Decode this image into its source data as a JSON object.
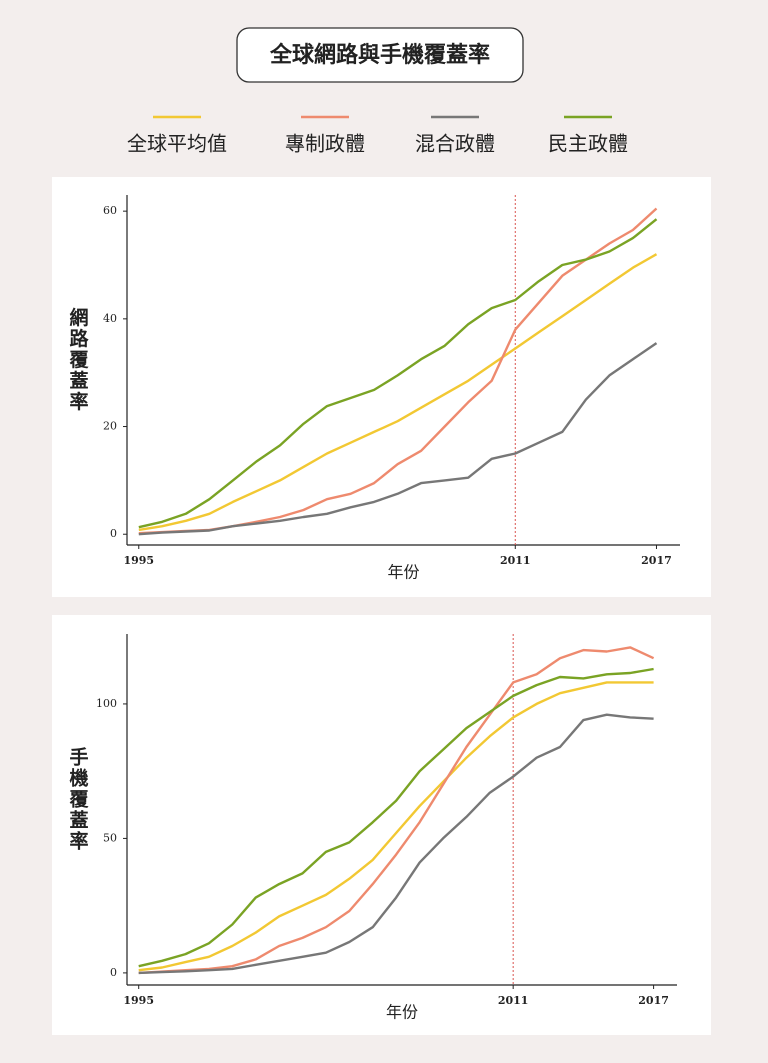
{
  "chart_data": [
    {
      "type": "line",
      "title": "全球網路與手機覆蓋率",
      "y_label": "網路覆蓋率",
      "x_label": "年份",
      "x": [
        1995,
        1996,
        1997,
        1998,
        1999,
        2000,
        2001,
        2002,
        2003,
        2004,
        2005,
        2006,
        2007,
        2008,
        2009,
        2010,
        2011,
        2012,
        2013,
        2014,
        2015,
        2016,
        2017
      ],
      "xlim": [
        1994.5,
        2018
      ],
      "xticks": [
        1995,
        2011,
        2017
      ],
      "vline": 2011,
      "ylim": [
        -2,
        63
      ],
      "yticks": [
        0,
        20,
        40,
        60
      ],
      "series": [
        {
          "name": "全球平均值",
          "color": "#f2c833",
          "values": [
            0.8,
            1.5,
            2.5,
            3.8,
            6,
            8,
            10,
            12.5,
            15,
            17,
            19,
            21,
            23.5,
            26,
            28.5,
            31.5,
            34.5,
            37.5,
            40.5,
            43.5,
            46.5,
            49.5,
            52
          ]
        },
        {
          "name": "專制政體",
          "color": "#ee8a6e",
          "values": [
            0.2,
            0.4,
            0.6,
            0.8,
            1.5,
            2.3,
            3.2,
            4.5,
            6.5,
            7.5,
            9.5,
            13,
            15.5,
            20,
            24.5,
            28.5,
            38,
            43,
            48,
            51,
            54,
            56.5,
            60.5
          ]
        },
        {
          "name": "混合政體",
          "color": "#777777",
          "values": [
            0,
            0.3,
            0.5,
            0.7,
            1.5,
            2,
            2.5,
            3.2,
            3.8,
            5,
            6,
            7.5,
            9.5,
            10,
            10.5,
            14,
            15,
            17,
            19,
            25,
            29.5,
            32.5,
            35.5
          ]
        },
        {
          "name": "民主政體",
          "color": "#7aa324",
          "values": [
            1.3,
            2.3,
            3.8,
            6.5,
            10,
            13.5,
            16.5,
            20.5,
            23.8,
            25.3,
            26.8,
            29.5,
            32.5,
            35,
            39,
            42,
            43.5,
            47,
            50,
            51,
            52.5,
            55,
            58.5
          ]
        }
      ]
    },
    {
      "type": "line",
      "y_label": "手機覆蓋率",
      "x_label": "年份",
      "x": [
        1995,
        1996,
        1997,
        1998,
        1999,
        2000,
        2001,
        2002,
        2003,
        2004,
        2005,
        2006,
        2007,
        2008,
        2009,
        2010,
        2011,
        2012,
        2013,
        2014,
        2015,
        2016,
        2017
      ],
      "xlim": [
        1994.5,
        2018
      ],
      "xticks": [
        1995,
        2011,
        2017
      ],
      "vline": 2011,
      "ylim": [
        -4.5,
        126
      ],
      "yticks": [
        0,
        50,
        100
      ],
      "series": [
        {
          "color": "#f2c833",
          "values": [
            1,
            2,
            4,
            6,
            10,
            15,
            21,
            25,
            29,
            35,
            42,
            52,
            62,
            71,
            80,
            88,
            95,
            100,
            104,
            106,
            108,
            108,
            108
          ]
        },
        {
          "color": "#ee8a6e",
          "values": [
            0,
            0.5,
            1,
            1.5,
            2.5,
            5,
            10,
            13,
            17,
            23,
            33,
            44,
            56,
            70,
            84,
            96,
            108,
            111,
            117,
            120,
            119.5,
            121,
            117
          ]
        },
        {
          "color": "#777777",
          "values": [
            0,
            0.3,
            0.6,
            1,
            1.5,
            3,
            4.5,
            6,
            7.5,
            11.5,
            17,
            28,
            41,
            50,
            58,
            67,
            73,
            80,
            84,
            94,
            96,
            95,
            94.5
          ]
        },
        {
          "color": "#7aa324",
          "values": [
            2.5,
            4.5,
            7,
            11,
            18,
            28,
            33,
            37,
            45,
            48.5,
            56,
            64,
            75,
            83,
            91,
            97,
            103,
            107,
            110,
            109.5,
            111,
            111.5,
            113
          ]
        }
      ]
    }
  ]
}
